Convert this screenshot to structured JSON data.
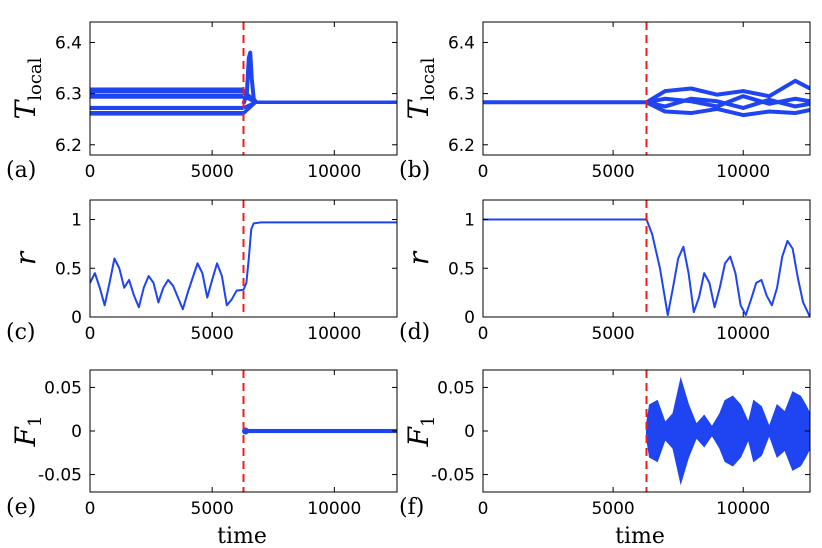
{
  "figure": {
    "xlabel": "time"
  },
  "chart_data": [
    {
      "panel": "(a)",
      "type": "line",
      "ylabel": "T",
      "ylabel_sub": "local",
      "xlim": [
        0,
        12566
      ],
      "ylim": [
        6.18,
        6.44
      ],
      "xticks": [
        0,
        5000,
        10000
      ],
      "yticks": [
        6.2,
        6.3,
        6.4
      ],
      "xtick_labels": [
        "0",
        "5000",
        "10000"
      ],
      "ytick_labels": [
        "6.2",
        "6.3",
        "6.4"
      ],
      "switch_time": 6283,
      "series": [
        {
          "style": "band",
          "y_before": [
            6.301,
            6.312
          ],
          "y_after": 6.283
        },
        {
          "style": "band",
          "y_before": [
            6.29,
            6.3
          ],
          "y_after": 6.283
        },
        {
          "style": "band",
          "y_before": [
            6.268,
            6.276
          ],
          "y_after": 6.283
        },
        {
          "style": "band",
          "y_before": [
            6.257,
            6.266
          ],
          "y_after": 6.283
        },
        {
          "style": "spike",
          "x": [
            6283,
            6420,
            6500,
            6560,
            6620,
            6700,
            6800
          ],
          "y": [
            6.28,
            6.3,
            6.37,
            6.38,
            6.33,
            6.29,
            6.283
          ]
        }
      ]
    },
    {
      "panel": "(b)",
      "type": "line",
      "ylabel": "T",
      "ylabel_sub": "local",
      "xlim": [
        0,
        12566
      ],
      "ylim": [
        6.18,
        6.44
      ],
      "xticks": [
        0,
        5000,
        10000
      ],
      "yticks": [
        6.2,
        6.3,
        6.4
      ],
      "xtick_labels": [
        "0",
        "5000",
        "10000"
      ],
      "ytick_labels": [
        "6.2",
        "6.3",
        "6.4"
      ],
      "switch_time": 6283,
      "series": [
        {
          "style": "thick",
          "x": [
            0,
            6283
          ],
          "y": [
            6.283,
            6.283
          ]
        },
        {
          "style": "thick",
          "x": [
            6283,
            7000,
            8000,
            9000,
            10000,
            11000,
            12000,
            12566
          ],
          "y": [
            6.283,
            6.305,
            6.31,
            6.298,
            6.305,
            6.295,
            6.325,
            6.31
          ]
        },
        {
          "style": "thick",
          "x": [
            6283,
            7000,
            8000,
            9000,
            10000,
            11000,
            12000,
            12566
          ],
          "y": [
            6.283,
            6.29,
            6.285,
            6.275,
            6.295,
            6.28,
            6.29,
            6.285
          ]
        },
        {
          "style": "thick",
          "x": [
            6283,
            7000,
            8000,
            9000,
            10000,
            11000,
            12000,
            12566
          ],
          "y": [
            6.283,
            6.265,
            6.262,
            6.27,
            6.258,
            6.265,
            6.262,
            6.268
          ]
        },
        {
          "style": "thick",
          "x": [
            6283,
            7000,
            8000,
            9000,
            10000,
            11000,
            12000,
            12566
          ],
          "y": [
            6.283,
            6.275,
            6.29,
            6.285,
            6.272,
            6.288,
            6.275,
            6.28
          ]
        }
      ]
    },
    {
      "panel": "(c)",
      "type": "line",
      "ylabel": "r",
      "ylabel_sub": "",
      "xlim": [
        0,
        12566
      ],
      "ylim": [
        0,
        1.2
      ],
      "xticks": [
        0,
        5000,
        10000
      ],
      "yticks": [
        0,
        0.5,
        1
      ],
      "xtick_labels": [
        "0",
        "5000",
        "10000"
      ],
      "ytick_labels": [
        "0",
        "0.5",
        "1"
      ],
      "switch_time": 6283,
      "series": [
        {
          "style": "thin",
          "x": [
            0,
            200,
            400,
            600,
            800,
            1000,
            1200,
            1400,
            1600,
            1800,
            2000,
            2200,
            2400,
            2600,
            2800,
            3000,
            3200,
            3400,
            3600,
            3800,
            4000,
            4200,
            4400,
            4600,
            4800,
            5000,
            5200,
            5400,
            5600,
            5800,
            6000,
            6283,
            6400,
            6500,
            6600,
            6700,
            7000,
            12566
          ],
          "y": [
            0.35,
            0.45,
            0.3,
            0.12,
            0.35,
            0.6,
            0.5,
            0.3,
            0.38,
            0.22,
            0.1,
            0.3,
            0.42,
            0.35,
            0.15,
            0.3,
            0.38,
            0.32,
            0.2,
            0.08,
            0.25,
            0.4,
            0.55,
            0.45,
            0.2,
            0.38,
            0.55,
            0.42,
            0.12,
            0.18,
            0.27,
            0.28,
            0.35,
            0.6,
            0.9,
            0.96,
            0.97,
            0.97
          ]
        }
      ]
    },
    {
      "panel": "(d)",
      "type": "line",
      "ylabel": "r",
      "ylabel_sub": "",
      "xlim": [
        0,
        12566
      ],
      "ylim": [
        0,
        1.2
      ],
      "xticks": [
        0,
        5000,
        10000
      ],
      "yticks": [
        0,
        0.5,
        1
      ],
      "xtick_labels": [
        "0",
        "5000",
        "10000"
      ],
      "ytick_labels": [
        "0",
        "0.5",
        "1"
      ],
      "switch_time": 6283,
      "series": [
        {
          "style": "thin",
          "x": [
            0,
            6283,
            6500,
            6800,
            7100,
            7300,
            7500,
            7700,
            7900,
            8100,
            8300,
            8500,
            8700,
            8900,
            9100,
            9300,
            9500,
            9700,
            9900,
            10100,
            10300,
            10500,
            10700,
            10900,
            11100,
            11300,
            11500,
            11700,
            11900,
            12100,
            12300,
            12566
          ],
          "y": [
            1.0,
            1.0,
            0.85,
            0.5,
            0.02,
            0.3,
            0.6,
            0.72,
            0.45,
            0.05,
            0.2,
            0.45,
            0.35,
            0.1,
            0.3,
            0.55,
            0.62,
            0.45,
            0.12,
            0.02,
            0.18,
            0.35,
            0.38,
            0.22,
            0.12,
            0.3,
            0.62,
            0.78,
            0.7,
            0.4,
            0.15,
            0.0
          ]
        }
      ]
    },
    {
      "panel": "(e)",
      "type": "line",
      "ylabel": "F",
      "ylabel_sub": "1",
      "xlim": [
        0,
        12566
      ],
      "ylim": [
        -0.07,
        0.07
      ],
      "xticks": [
        0,
        5000,
        10000
      ],
      "yticks": [
        -0.05,
        0,
        0.05
      ],
      "xtick_labels": [
        "0",
        "5000",
        "10000"
      ],
      "ytick_labels": [
        "-0.05",
        "0",
        "0.05"
      ],
      "switch_time": 6283,
      "series": [
        {
          "style": "band",
          "x_range": [
            6283,
            12566
          ],
          "y_range": [
            -0.0012,
            0.0012
          ]
        }
      ]
    },
    {
      "panel": "(f)",
      "type": "area",
      "ylabel": "F",
      "ylabel_sub": "1",
      "xlim": [
        0,
        12566
      ],
      "ylim": [
        -0.07,
        0.07
      ],
      "xticks": [
        0,
        5000,
        10000
      ],
      "yticks": [
        -0.05,
        0,
        0.05
      ],
      "xtick_labels": [
        "0",
        "5000",
        "10000"
      ],
      "ytick_labels": [
        "-0.05",
        "0",
        "0.05"
      ],
      "switch_time": 6283,
      "series": [
        {
          "style": "envelope",
          "x": [
            6283,
            6400,
            6700,
            7000,
            7300,
            7600,
            7900,
            8200,
            8500,
            8800,
            9100,
            9300,
            9600,
            9900,
            10200,
            10400,
            10700,
            11000,
            11300,
            11600,
            11900,
            12200,
            12400,
            12566
          ],
          "amp": [
            0.008,
            0.03,
            0.035,
            0.01,
            0.02,
            0.06,
            0.03,
            0.008,
            0.018,
            0.005,
            0.02,
            0.035,
            0.04,
            0.03,
            0.01,
            0.035,
            0.028,
            0.005,
            0.03,
            0.022,
            0.045,
            0.04,
            0.03,
            0.02
          ]
        }
      ]
    }
  ],
  "colors": {
    "line": "#1f44f2",
    "switch": "#ee1c1c",
    "axis": "#000000"
  }
}
